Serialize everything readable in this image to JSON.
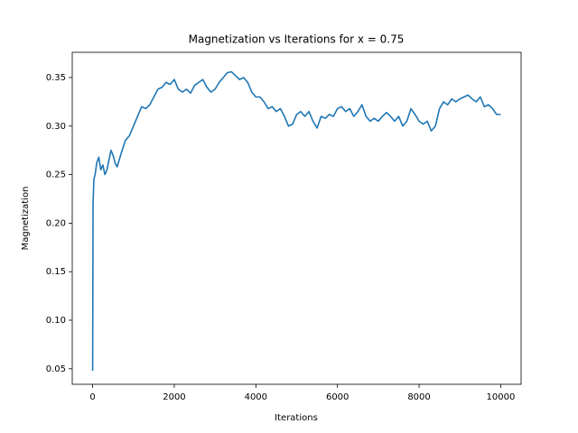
{
  "chart_data": {
    "type": "line",
    "title": "Magnetization vs Iterations for x = 0.75",
    "x_label": "Iterations",
    "y_label": "Magnetization",
    "color": "#1f77b4",
    "x": [
      0,
      10,
      30,
      60,
      100,
      150,
      200,
      250,
      300,
      350,
      400,
      450,
      500,
      550,
      600,
      700,
      800,
      900,
      1000,
      1100,
      1200,
      1300,
      1400,
      1500,
      1600,
      1700,
      1800,
      1900,
      2000,
      2100,
      2200,
      2300,
      2400,
      2500,
      2600,
      2700,
      2800,
      2900,
      3000,
      3100,
      3200,
      3300,
      3400,
      3500,
      3600,
      3700,
      3800,
      3900,
      4000,
      4100,
      4200,
      4300,
      4400,
      4500,
      4600,
      4700,
      4800,
      4900,
      5000,
      5100,
      5200,
      5300,
      5400,
      5500,
      5600,
      5700,
      5800,
      5900,
      6000,
      6100,
      6200,
      6300,
      6400,
      6500,
      6600,
      6700,
      6800,
      6900,
      7000,
      7100,
      7200,
      7300,
      7400,
      7500,
      7600,
      7700,
      7800,
      7900,
      8000,
      8100,
      8200,
      8300,
      8400,
      8500,
      8600,
      8700,
      8800,
      8900,
      9000,
      9100,
      9200,
      9300,
      9400,
      9500,
      9600,
      9700,
      9800,
      9900,
      10000
    ],
    "values": [
      0.048,
      0.22,
      0.245,
      0.25,
      0.262,
      0.268,
      0.255,
      0.26,
      0.25,
      0.255,
      0.265,
      0.275,
      0.27,
      0.262,
      0.258,
      0.272,
      0.285,
      0.29,
      0.3,
      0.31,
      0.32,
      0.318,
      0.322,
      0.33,
      0.338,
      0.34,
      0.345,
      0.343,
      0.348,
      0.338,
      0.335,
      0.338,
      0.334,
      0.342,
      0.345,
      0.348,
      0.34,
      0.335,
      0.338,
      0.345,
      0.35,
      0.355,
      0.356,
      0.352,
      0.348,
      0.35,
      0.345,
      0.335,
      0.33,
      0.33,
      0.325,
      0.318,
      0.32,
      0.315,
      0.318,
      0.31,
      0.3,
      0.302,
      0.312,
      0.315,
      0.31,
      0.315,
      0.305,
      0.298,
      0.31,
      0.308,
      0.312,
      0.31,
      0.318,
      0.32,
      0.315,
      0.318,
      0.31,
      0.315,
      0.322,
      0.31,
      0.305,
      0.308,
      0.305,
      0.31,
      0.314,
      0.31,
      0.305,
      0.31,
      0.3,
      0.305,
      0.318,
      0.312,
      0.305,
      0.302,
      0.305,
      0.295,
      0.3,
      0.318,
      0.325,
      0.322,
      0.328,
      0.325,
      0.328,
      0.33,
      0.332,
      0.328,
      0.325,
      0.33,
      0.32,
      0.322,
      0.318,
      0.312,
      0.312
    ],
    "xlim": [
      -500,
      10500
    ],
    "xticks": [
      0,
      2000,
      4000,
      6000,
      8000,
      10000
    ],
    "ylim": [
      0.034,
      0.376
    ],
    "yticks": [
      0.05,
      {
        "value": 0.1,
        "label": "0.10"
      },
      0.15,
      {
        "value": 0.2,
        "label": "0.20"
      },
      0.25,
      {
        "value": 0.3,
        "label": "0.30"
      },
      0.35
    ]
  }
}
